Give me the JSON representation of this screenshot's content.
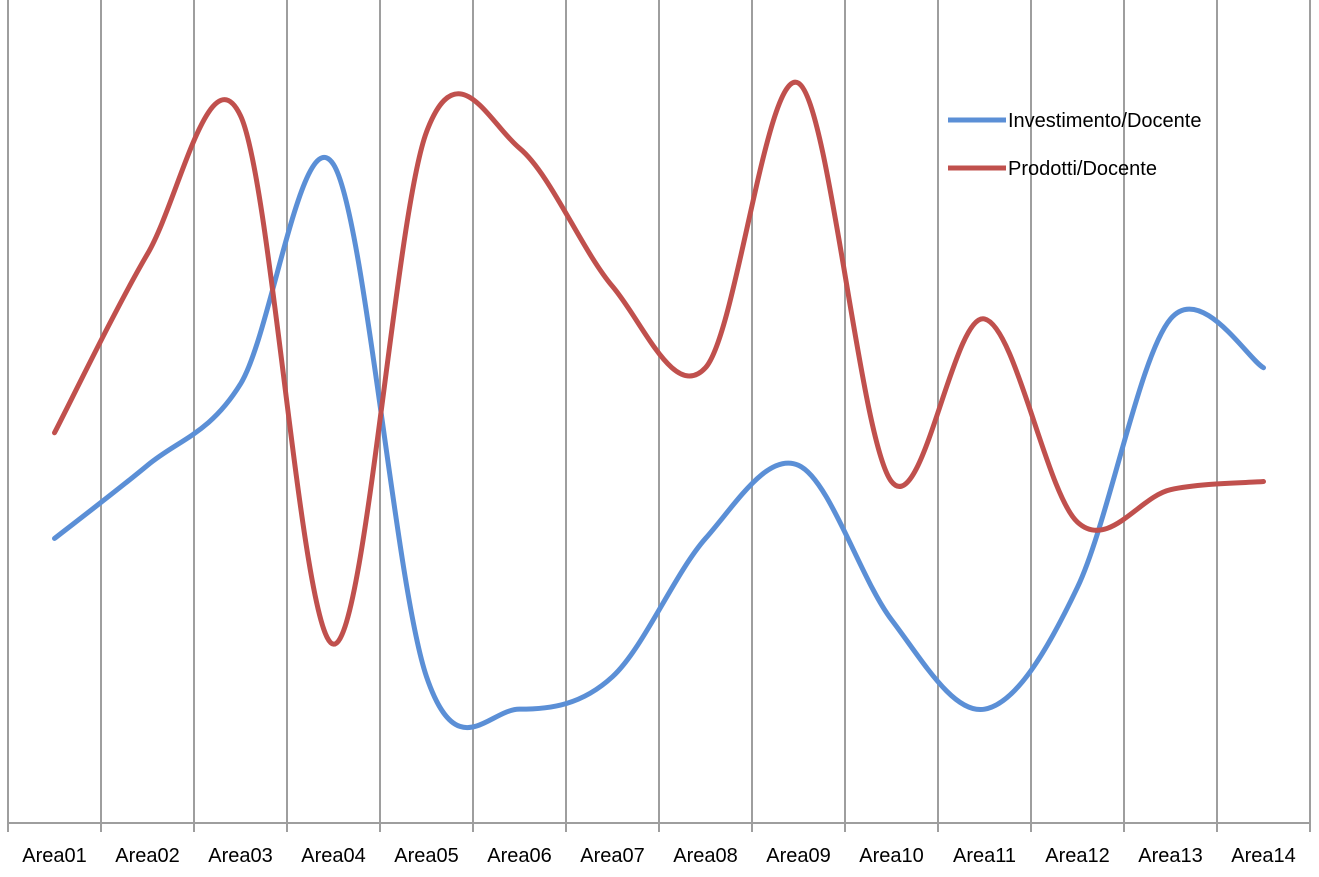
{
  "chart_data": {
    "type": "line",
    "smooth": true,
    "title": "",
    "xlabel": "",
    "ylabel": "",
    "categories": [
      "Area01",
      "Area02",
      "Area03",
      "Area04",
      "Area05",
      "Area06",
      "Area07",
      "Area08",
      "Area09",
      "Area10",
      "Area11",
      "Area12",
      "Area13",
      "Area14"
    ],
    "ylim": [
      0,
      100
    ],
    "y_axis_labels_shown": false,
    "grid": {
      "vertical": true,
      "horizontal": false
    },
    "legend": "top-right",
    "series": [
      {
        "name": "Investimento/Docente",
        "color": "#5b8fd6",
        "values": [
          35,
          44,
          54,
          81,
          18,
          14,
          18,
          35,
          44,
          25,
          14,
          29,
          62,
          56
        ]
      },
      {
        "name": "Prodotti/Docente",
        "color": "#c0504d",
        "values": [
          48,
          70,
          87,
          22,
          85,
          83,
          66,
          56,
          91,
          42,
          62,
          37,
          41,
          42
        ]
      }
    ]
  }
}
